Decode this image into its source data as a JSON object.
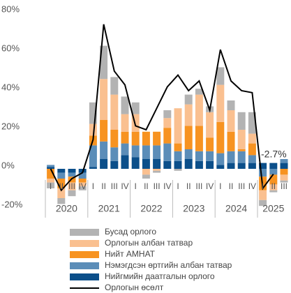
{
  "chart_data": {
    "type": "bar",
    "categories": [
      "I",
      "II",
      "III",
      "IV",
      "I",
      "II",
      "III",
      "IV",
      "I",
      "II",
      "III",
      "IV",
      "I",
      "II",
      "III",
      "IV",
      "I",
      "II",
      "III",
      "IV",
      "I",
      "II",
      "III"
    ],
    "years": [
      "2020",
      "2021",
      "2022",
      "2023",
      "2024",
      "2025"
    ],
    "ylim": [
      -20,
      80
    ],
    "yticks": [
      {
        "value": -20,
        "label": "-20%"
      },
      {
        "value": 0,
        "label": "0%"
      },
      {
        "value": 20,
        "label": "20%"
      },
      {
        "value": 40,
        "label": "40%"
      },
      {
        "value": 60,
        "label": "60%"
      },
      {
        "value": 80,
        "label": "80%"
      }
    ],
    "series": [
      {
        "name": "Нийгмийн даатгалын орлого",
        "color": "#0b4f8a",
        "values": [
          1,
          -2,
          -2,
          -2,
          1,
          5,
          4,
          7,
          6,
          5,
          5,
          4,
          4,
          5,
          4,
          4,
          2,
          3,
          3,
          3,
          3,
          3,
          3
        ]
      },
      {
        "name": "Нэмэгдсэн өртгийн албан татвар",
        "color": "#5b8db8",
        "values": [
          1,
          -3,
          -2,
          -3,
          11,
          9,
          7,
          6,
          6,
          7,
          7,
          9,
          5,
          5,
          5,
          5,
          6,
          6,
          6,
          4,
          -4,
          -3,
          2
        ]
      },
      {
        "name": "Нийт АМНАТ",
        "color": "#f79321",
        "values": [
          -5,
          -5,
          -3,
          -2,
          5,
          11,
          9,
          6,
          7,
          7,
          7,
          8,
          4,
          12,
          13,
          7,
          16,
          10,
          1,
          6,
          -7,
          -5,
          -3
        ]
      },
      {
        "name": "Орлогын албан татвар",
        "color": "#fac090",
        "values": [
          -2,
          -5,
          -4,
          -2,
          6,
          21,
          18,
          9,
          9,
          -3,
          -1,
          5,
          18,
          11,
          16,
          13,
          19,
          11,
          10,
          5,
          -5,
          -3,
          -3
        ]
      },
      {
        "name": "Бусад орлого",
        "color": "#b3b3b3",
        "values": [
          -3,
          -3,
          -3,
          -2,
          11,
          17,
          9,
          9,
          6,
          -2,
          -1,
          4,
          -1,
          5,
          3,
          3,
          9,
          5,
          9,
          11,
          -3,
          -1,
          -1
        ]
      }
    ],
    "line": {
      "name": "Орлогын өсөлт",
      "color": "#000000",
      "values": [
        0,
        -11,
        -5,
        -2,
        15,
        74,
        50,
        43,
        22,
        20,
        31,
        42,
        48,
        40,
        45,
        30,
        61,
        45,
        40,
        39,
        -10,
        -2.7,
        null
      ]
    },
    "annotation": "-2.7%"
  }
}
